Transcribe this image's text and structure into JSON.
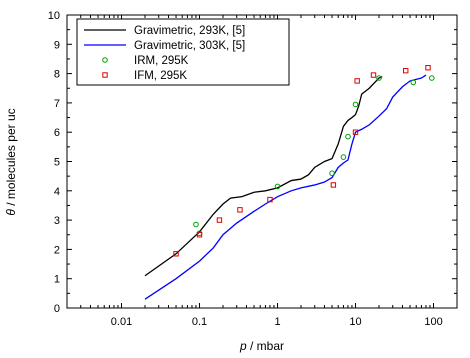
{
  "chart_data": {
    "type": "line",
    "xlabel": {
      "symbol": "p",
      "rest": " / mbar"
    },
    "ylabel": {
      "symbol": "θ",
      "rest": " / molecules per uc"
    },
    "xscale": "log",
    "xlim": [
      0.002,
      200
    ],
    "ylim": [
      0,
      10
    ],
    "xticks": [
      0.01,
      0.1,
      1,
      10,
      100
    ],
    "xtick_labels": [
      "0.01",
      "0.1",
      "1",
      "10",
      "100"
    ],
    "yticks": [
      0,
      1,
      2,
      3,
      4,
      5,
      6,
      7,
      8,
      9,
      10
    ],
    "ytick_labels": [
      "0",
      "1",
      "2",
      "3",
      "4",
      "5",
      "6",
      "7",
      "8",
      "9",
      "10"
    ],
    "grid": false,
    "legend_position": "top-left",
    "series": [
      {
        "name": "Gravimetric, 293K, [5]",
        "kind": "line",
        "color": "#000000",
        "points": [
          [
            0.02,
            1.1
          ],
          [
            0.05,
            1.85
          ],
          [
            0.1,
            2.6
          ],
          [
            0.15,
            3.2
          ],
          [
            0.2,
            3.55
          ],
          [
            0.25,
            3.75
          ],
          [
            0.35,
            3.8
          ],
          [
            0.5,
            3.95
          ],
          [
            0.7,
            4.0
          ],
          [
            1.0,
            4.1
          ],
          [
            1.5,
            4.35
          ],
          [
            2.0,
            4.4
          ],
          [
            2.5,
            4.55
          ],
          [
            3.0,
            4.8
          ],
          [
            4.0,
            5.0
          ],
          [
            5.0,
            5.1
          ],
          [
            6.0,
            5.6
          ],
          [
            7.0,
            6.2
          ],
          [
            8.0,
            6.4
          ],
          [
            9.0,
            6.5
          ],
          [
            10.0,
            6.6
          ],
          [
            11.0,
            6.9
          ],
          [
            12.0,
            7.3
          ],
          [
            15.0,
            7.5
          ],
          [
            20.0,
            7.85
          ],
          [
            22.0,
            7.9
          ]
        ]
      },
      {
        "name": "Gravimetric, 303K, [5]",
        "kind": "line",
        "color": "#0000ff",
        "points": [
          [
            0.02,
            0.3
          ],
          [
            0.05,
            1.0
          ],
          [
            0.1,
            1.6
          ],
          [
            0.15,
            2.05
          ],
          [
            0.2,
            2.5
          ],
          [
            0.3,
            2.9
          ],
          [
            0.5,
            3.3
          ],
          [
            0.7,
            3.55
          ],
          [
            1.0,
            3.8
          ],
          [
            1.5,
            4.0
          ],
          [
            2.0,
            4.1
          ],
          [
            3.0,
            4.2
          ],
          [
            4.0,
            4.3
          ],
          [
            5.0,
            4.45
          ],
          [
            6.0,
            4.8
          ],
          [
            7.0,
            4.95
          ],
          [
            8.0,
            5.05
          ],
          [
            9.0,
            5.6
          ],
          [
            10.0,
            6.0
          ],
          [
            12.0,
            6.1
          ],
          [
            15.0,
            6.25
          ],
          [
            20.0,
            6.55
          ],
          [
            25.0,
            6.8
          ],
          [
            30.0,
            7.2
          ],
          [
            40.0,
            7.55
          ],
          [
            50.0,
            7.75
          ],
          [
            70.0,
            7.85
          ],
          [
            80.0,
            7.95
          ]
        ]
      },
      {
        "name": "IRM, 295K",
        "kind": "scatter",
        "marker": "circle",
        "color": "#00a000",
        "points": [
          [
            0.09,
            2.85
          ],
          [
            0.1,
            2.55
          ],
          [
            1.0,
            4.15
          ],
          [
            5.0,
            4.6
          ],
          [
            7.0,
            5.15
          ],
          [
            8.0,
            5.85
          ],
          [
            10.0,
            6.95
          ],
          [
            20.0,
            7.85
          ],
          [
            55.0,
            7.7
          ],
          [
            95.0,
            7.85
          ]
        ]
      },
      {
        "name": "IFM, 295K",
        "kind": "scatter",
        "marker": "square",
        "color": "#e00000",
        "points": [
          [
            0.05,
            1.85
          ],
          [
            0.1,
            2.5
          ],
          [
            0.18,
            3.0
          ],
          [
            0.33,
            3.35
          ],
          [
            0.8,
            3.7
          ],
          [
            5.2,
            4.2
          ],
          [
            10.0,
            6.0
          ],
          [
            10.5,
            7.75
          ],
          [
            17.0,
            7.95
          ],
          [
            44.0,
            8.1
          ],
          [
            85.0,
            8.2
          ]
        ]
      }
    ]
  }
}
